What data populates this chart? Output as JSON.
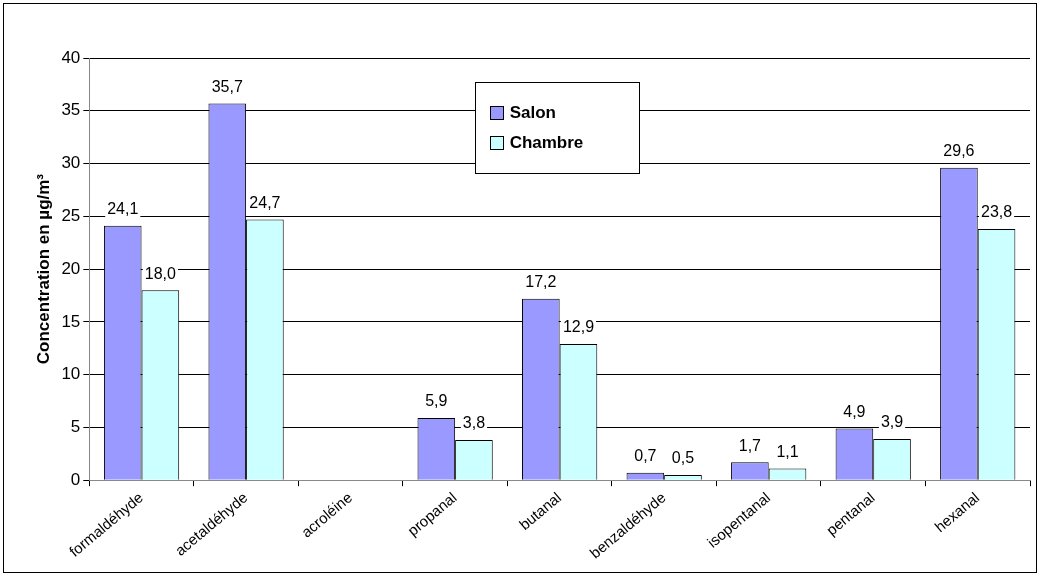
{
  "chart_data": {
    "type": "bar",
    "ylabel": "Concentration en µg/m³",
    "categories": [
      "formaldéhyde",
      "acetaldéhyde",
      "acroléine",
      "propanal",
      "butanal",
      "benzaldéhyde",
      "isopentanal",
      "pentanal",
      "hexanal"
    ],
    "series": [
      {
        "name": "Salon",
        "color": "#9999ff",
        "values": [
          24.1,
          35.7,
          null,
          5.9,
          17.2,
          0.7,
          1.7,
          4.9,
          29.6
        ],
        "value_labels": [
          "24,1",
          "35,7",
          null,
          "5,9",
          "17,2",
          "0,7",
          "1,7",
          "4,9",
          "29,6"
        ]
      },
      {
        "name": "Chambre",
        "color": "#ccffff",
        "values": [
          18.0,
          24.7,
          null,
          3.8,
          12.9,
          0.5,
          1.1,
          3.9,
          23.8
        ],
        "value_labels": [
          "18,0",
          "24,7",
          null,
          "3,8",
          "12,9",
          "0,5",
          "1,1",
          "3,9",
          "23,8"
        ]
      }
    ],
    "ylim": [
      0,
      40
    ],
    "yticks": [
      0,
      5,
      10,
      15,
      20,
      25,
      30,
      35,
      40
    ],
    "grid": "y",
    "legend": "top"
  }
}
